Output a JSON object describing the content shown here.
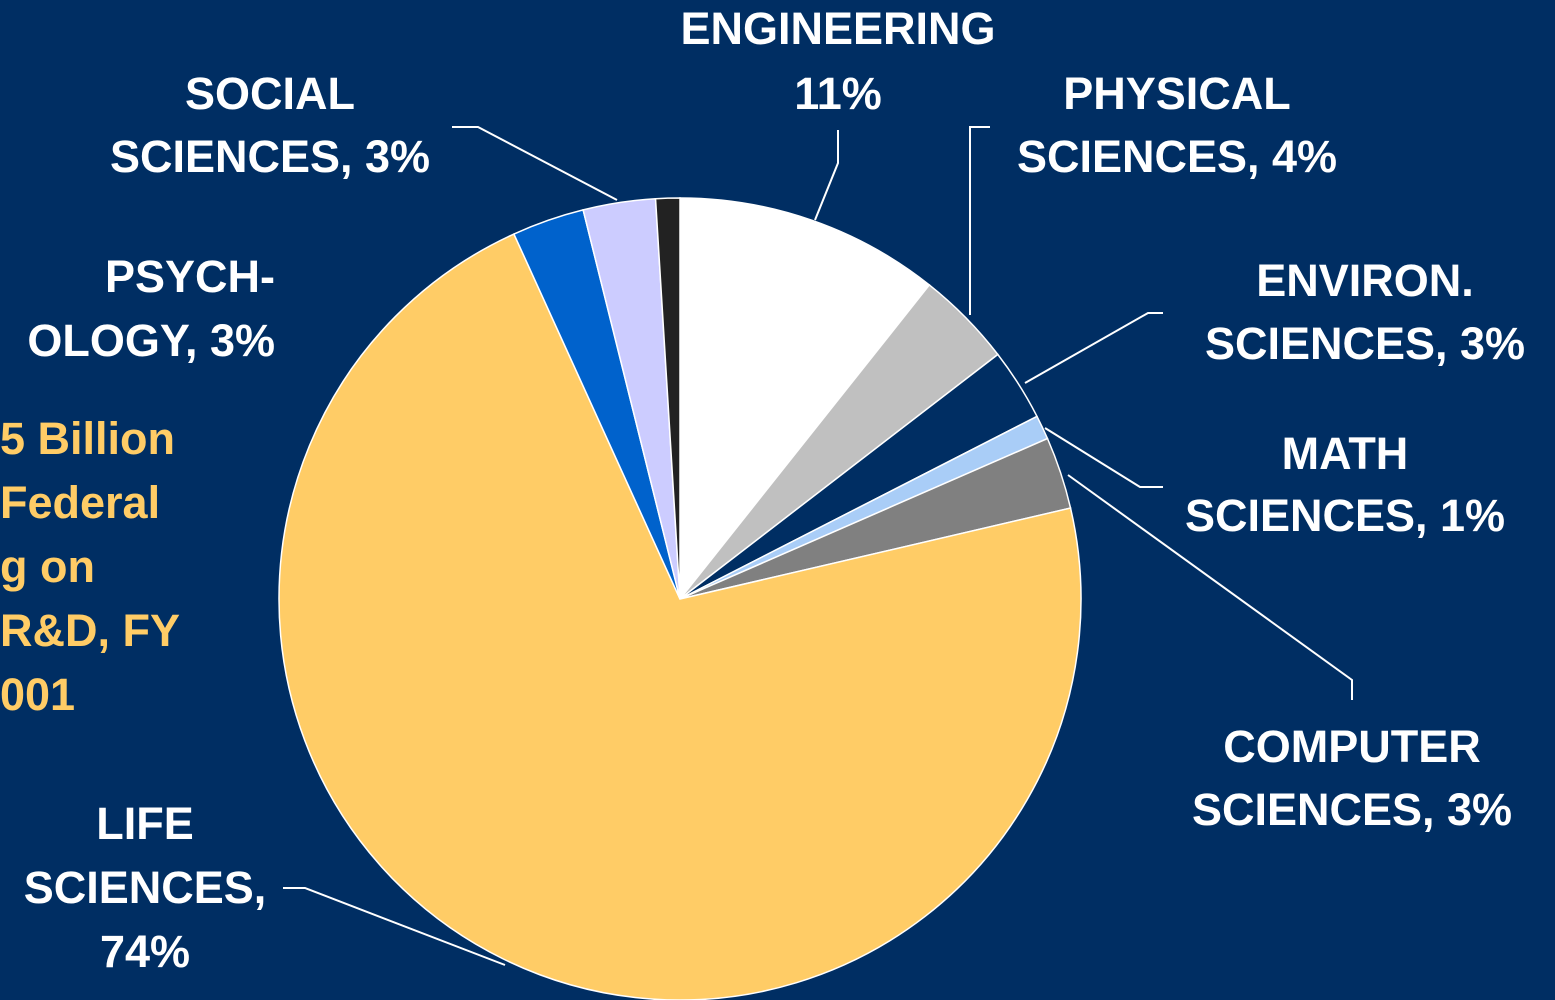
{
  "chart_data": {
    "type": "pie",
    "labels": [
      [
        "ENGINEERING",
        "11%"
      ],
      [
        "PHYSICAL",
        "SCIENCES, 4%"
      ],
      [
        "ENVIRON.",
        "SCIENCES, 3%"
      ],
      [
        "MATH",
        "SCIENCES, 1%"
      ],
      [
        "COMPUTER",
        "SCIENCES, 3%"
      ],
      [
        "LIFE",
        "SCIENCES,",
        "74%"
      ],
      [
        "PSYCH-",
        "OLOGY, 3%"
      ],
      [
        "SOCIAL",
        "SCIENCES, 3%"
      ],
      null
    ],
    "values": [
      11,
      4,
      3,
      1,
      3,
      74,
      3,
      3,
      1
    ],
    "colors": [
      "#ffffff",
      "#c0c0c0",
      "#002e63",
      "#a9cdf7",
      "#808080",
      "#ffcc66",
      "#0062cc",
      "#ccccff",
      "#222222"
    ],
    "annotation": [
      "5 Billion",
      " Federal",
      "g on",
      "R&D, FY",
      "001"
    ]
  }
}
